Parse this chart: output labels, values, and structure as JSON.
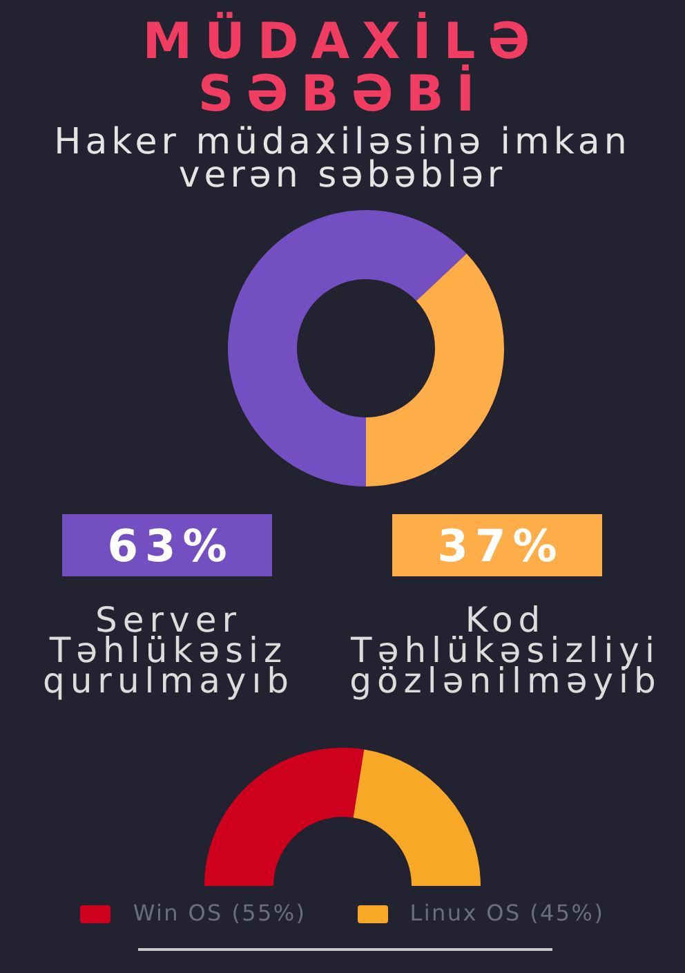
{
  "chart_data": [
    {
      "type": "donut",
      "title": "MÜDAXİLƏ SƏBƏBİ",
      "subtitle": "Haker müdaxiləsinə imkan verən səbəblər",
      "categories": [
        "Server Təhlükəsiz qurulmayıb",
        "Kod Təhlükəsizliyi gözlənilməyib"
      ],
      "values": [
        63,
        37
      ],
      "colors": [
        "#744fc2",
        "#ffad48"
      ],
      "value_labels": [
        "63%",
        "37%"
      ]
    },
    {
      "type": "donut",
      "categories": [
        "Win OS (55%)",
        "Linux OS (45%)"
      ],
      "values": [
        55,
        45
      ],
      "colors": [
        "#cf001d",
        "#f6a826"
      ],
      "legend": "bottom"
    }
  ]
}
